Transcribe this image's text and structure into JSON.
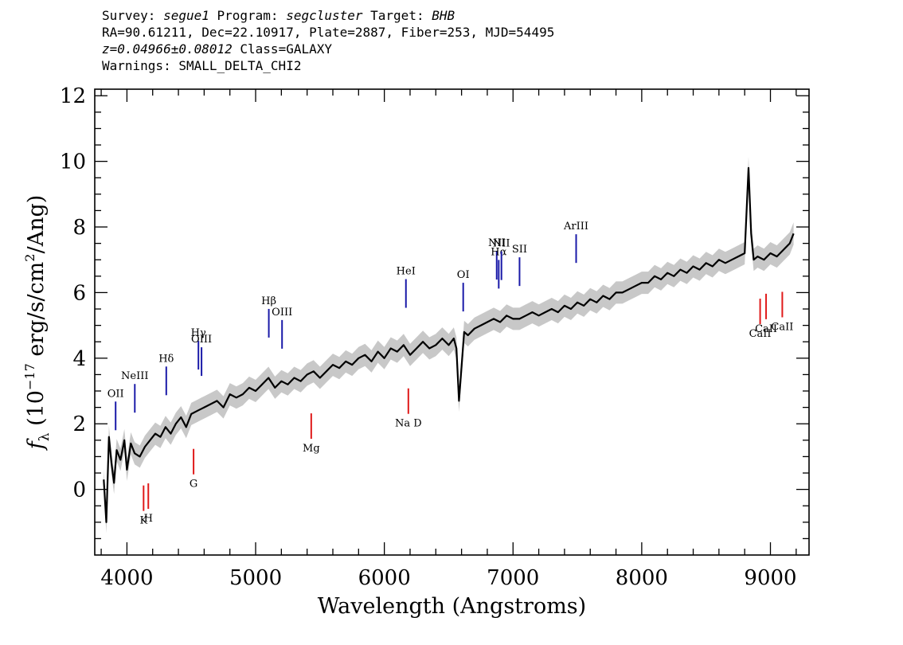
{
  "header": {
    "survey_label": "Survey: ",
    "survey": "segue1",
    "program_label": " Program: ",
    "program": "segcluster",
    "target_label": " Target: ",
    "target": "BHB",
    "line2": "RA=90.61211, Dec=22.10917, Plate=2887, Fiber=253, MJD=54495",
    "redshift": "z=0.04966±0.08012",
    "class_text": " Class=GALAXY",
    "line4": "Warnings: SMALL_DELTA_CHI2"
  },
  "chart_data": {
    "type": "line",
    "xlabel": "Wavelength (Angstroms)",
    "ylabel_prefix": "f",
    "ylabel_subscript": "λ",
    "ylabel_main": " (10",
    "ylabel_exp1": "−17",
    "ylabel_mid": " erg/s/cm",
    "ylabel_exp2": "2",
    "ylabel_end": "/Ang)",
    "xlim": [
      3750,
      9300
    ],
    "ylim": [
      -2.0,
      12.2
    ],
    "xticks": [
      4000,
      5000,
      6000,
      7000,
      8000,
      9000
    ],
    "xtick_labels": [
      "4000",
      "5000",
      "6000",
      "7000",
      "8000",
      "9000"
    ],
    "yticks": [
      0,
      2,
      4,
      6,
      8,
      10,
      12
    ],
    "ytick_labels": [
      "0",
      "2",
      "4",
      "6",
      "8",
      "10",
      "12"
    ],
    "grid": false,
    "colors": {
      "flux": "#000000",
      "raw": "#c8c8c8",
      "emission": "#1a1aa8",
      "absorption": "#e01a1a"
    },
    "series": [
      {
        "role": "smoothed-flux",
        "color": "#000000",
        "x": [
          3820,
          3840,
          3860,
          3880,
          3900,
          3920,
          3950,
          3980,
          4000,
          4030,
          4060,
          4100,
          4140,
          4180,
          4220,
          4260,
          4300,
          4340,
          4380,
          4420,
          4460,
          4500,
          4550,
          4600,
          4650,
          4700,
          4750,
          4800,
          4850,
          4900,
          4950,
          5000,
          5050,
          5100,
          5150,
          5200,
          5250,
          5300,
          5350,
          5400,
          5450,
          5500,
          5550,
          5600,
          5650,
          5700,
          5750,
          5800,
          5850,
          5900,
          5950,
          6000,
          6050,
          6100,
          6150,
          6200,
          6250,
          6300,
          6350,
          6400,
          6450,
          6500,
          6540,
          6560,
          6580,
          6620,
          6650,
          6700,
          6750,
          6800,
          6850,
          6900,
          6950,
          7000,
          7050,
          7100,
          7150,
          7200,
          7250,
          7300,
          7350,
          7400,
          7450,
          7500,
          7550,
          7600,
          7650,
          7700,
          7750,
          7800,
          7850,
          7900,
          7950,
          8000,
          8050,
          8100,
          8150,
          8200,
          8250,
          8300,
          8350,
          8400,
          8450,
          8500,
          8550,
          8600,
          8650,
          8700,
          8750,
          8800,
          8830,
          8850,
          8870,
          8900,
          8950,
          9000,
          9050,
          9100,
          9150,
          9180
        ],
        "y": [
          0.3,
          -1.0,
          1.6,
          0.8,
          0.2,
          1.2,
          0.9,
          1.5,
          0.6,
          1.4,
          1.1,
          1.0,
          1.3,
          1.5,
          1.7,
          1.6,
          1.9,
          1.7,
          2.0,
          2.2,
          1.9,
          2.3,
          2.4,
          2.5,
          2.6,
          2.7,
          2.5,
          2.9,
          2.8,
          2.9,
          3.1,
          3.0,
          3.2,
          3.4,
          3.1,
          3.3,
          3.2,
          3.4,
          3.3,
          3.5,
          3.6,
          3.4,
          3.6,
          3.8,
          3.7,
          3.9,
          3.8,
          4.0,
          4.1,
          3.9,
          4.2,
          4.0,
          4.3,
          4.2,
          4.4,
          4.1,
          4.3,
          4.5,
          4.3,
          4.4,
          4.6,
          4.4,
          4.6,
          4.3,
          2.7,
          4.8,
          4.7,
          4.9,
          5.0,
          5.1,
          5.2,
          5.1,
          5.3,
          5.2,
          5.2,
          5.3,
          5.4,
          5.3,
          5.4,
          5.5,
          5.4,
          5.6,
          5.5,
          5.7,
          5.6,
          5.8,
          5.7,
          5.9,
          5.8,
          6.0,
          6.0,
          6.1,
          6.2,
          6.3,
          6.3,
          6.5,
          6.4,
          6.6,
          6.5,
          6.7,
          6.6,
          6.8,
          6.7,
          6.9,
          6.8,
          7.0,
          6.9,
          7.0,
          7.1,
          7.2,
          9.8,
          7.8,
          7.0,
          7.1,
          7.0,
          7.2,
          7.1,
          7.3,
          7.5,
          7.8
        ]
      }
    ],
    "emission_lines": [
      {
        "label": "OII",
        "x": 3727
      },
      {
        "label": "NeIII",
        "x": 3869
      },
      {
        "label": "Hδ",
        "x": 4102
      },
      {
        "label": "Hγ",
        "x": 4340
      },
      {
        "label": "OIII",
        "x": 4363
      },
      {
        "label": "Hβ",
        "x": 4861
      },
      {
        "label": "OIII",
        "x": 4959
      },
      {
        "label": "HeI",
        "x": 5876
      },
      {
        "label": "OI",
        "x": 6300
      },
      {
        "label": "NII",
        "x": 6548
      },
      {
        "label": "Hα",
        "x": 6563
      },
      {
        "label": "NII",
        "x": 6583
      },
      {
        "label": "SII",
        "x": 6717
      },
      {
        "label": "ArIII",
        "x": 7136
      }
    ],
    "absorption_lines": [
      {
        "label": "K",
        "x": 3934
      },
      {
        "label": "H",
        "x": 3969
      },
      {
        "label": "G",
        "x": 4304
      },
      {
        "label": "Mg",
        "x": 5175
      },
      {
        "label": "Na D",
        "x": 5894
      },
      {
        "label": "CaII",
        "x": 8498
      },
      {
        "label": "CaII",
        "x": 8542
      },
      {
        "label": "CaII",
        "x": 8662
      }
    ]
  }
}
